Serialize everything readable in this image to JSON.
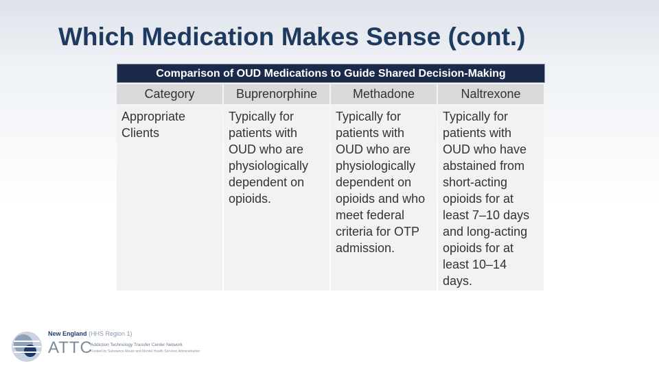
{
  "header": {
    "title": "Which Medication Makes Sense (cont.)"
  },
  "table": {
    "caption": "Comparison of OUD Medications to Guide Shared Decision-Making",
    "columns": [
      "Category",
      "Buprenorphine",
      "Methadone",
      "Naltrexone"
    ],
    "rows": [
      [
        "Appropriate Clients",
        "Typically for patients with OUD who are physiologically dependent on opioids.",
        "Typically for patients with OUD who are physiologically dependent on opioids and who meet federal criteria for OTP admission.",
        "Typically for patients with OUD who have abstained from short-acting opioids for at least 7–10 days and long-acting opioids for at least 10–14 days."
      ]
    ]
  },
  "footer": {
    "region": "New England",
    "region_note": "(HHS Region 1)",
    "logo": "ATTC",
    "network": "Addiction Technology Transfer Center Network",
    "funding": "Funded by Substance Abuse and Mental Health Services Administration"
  }
}
